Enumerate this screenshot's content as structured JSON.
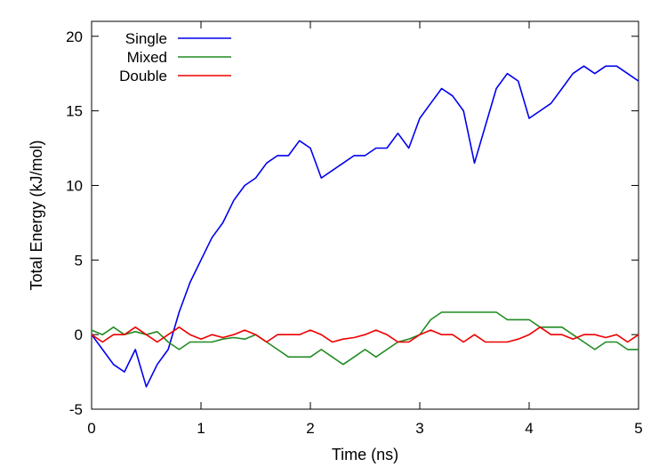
{
  "chart_data": {
    "type": "line",
    "title": "",
    "xlabel": "Time (ns)",
    "ylabel": "Total Energy (kJ/mol)",
    "xlim": [
      0,
      5
    ],
    "ylim": [
      -5,
      21
    ],
    "xticks": [
      0,
      1,
      2,
      3,
      4,
      5
    ],
    "yticks": [
      -5,
      0,
      5,
      10,
      15,
      20
    ],
    "grid": false,
    "legend_position": "top-left",
    "x": [
      0,
      0.1,
      0.2,
      0.3,
      0.4,
      0.5,
      0.6,
      0.7,
      0.8,
      0.9,
      1.0,
      1.1,
      1.2,
      1.3,
      1.4,
      1.5,
      1.6,
      1.7,
      1.8,
      1.9,
      2.0,
      2.1,
      2.2,
      2.3,
      2.4,
      2.5,
      2.6,
      2.7,
      2.8,
      2.9,
      3.0,
      3.1,
      3.2,
      3.3,
      3.4,
      3.5,
      3.6,
      3.7,
      3.8,
      3.9,
      4.0,
      4.1,
      4.2,
      4.3,
      4.4,
      4.5,
      4.6,
      4.7,
      4.8,
      4.9,
      5.0
    ],
    "series": [
      {
        "name": "Single",
        "color": "#0000ee",
        "values": [
          0,
          -1,
          -2,
          -2.5,
          -1,
          -3.5,
          -2,
          -1,
          1.5,
          3.5,
          5,
          6.5,
          7.5,
          9,
          10,
          10.5,
          11.5,
          12,
          12,
          13,
          12.5,
          10.5,
          11,
          11.5,
          12,
          12,
          12.5,
          12.5,
          13.5,
          12.5,
          14.5,
          15.5,
          16.5,
          16,
          15,
          11.5,
          14,
          16.5,
          17.5,
          17,
          14.5,
          15,
          15.5,
          16.5,
          17.5,
          18,
          17.5,
          18,
          18,
          17.5,
          17
        ]
      },
      {
        "name": "Mixed",
        "color": "#228b22",
        "values": [
          0.3,
          0,
          0.5,
          0,
          0.2,
          0,
          0.2,
          -0.5,
          -1,
          -0.5,
          -0.5,
          -0.5,
          -0.3,
          -0.2,
          -0.3,
          0,
          -0.5,
          -1,
          -1.5,
          -1.5,
          -1.5,
          -1,
          -1.5,
          -2,
          -1.5,
          -1,
          -1.5,
          -1,
          -0.5,
          -0.3,
          0,
          1,
          1.5,
          1.5,
          1.5,
          1.5,
          1.5,
          1.5,
          1,
          1,
          1,
          0.5,
          0.5,
          0.5,
          0,
          -0.5,
          -1,
          -0.5,
          -0.5,
          -1,
          -1
        ]
      },
      {
        "name": "Double",
        "color": "#ee0000",
        "values": [
          0,
          -0.5,
          0,
          0,
          0.5,
          0,
          -0.5,
          0,
          0.5,
          0,
          -0.3,
          0,
          -0.2,
          0,
          0.3,
          0,
          -0.5,
          0,
          0,
          0,
          0.3,
          0,
          -0.5,
          -0.3,
          -0.2,
          0,
          0.3,
          0,
          -0.5,
          -0.5,
          0,
          0.3,
          0,
          0,
          -0.5,
          0,
          -0.5,
          -0.5,
          -0.5,
          -0.3,
          0,
          0.5,
          0,
          0,
          -0.3,
          0,
          0,
          -0.2,
          0,
          -0.5,
          0
        ]
      }
    ]
  }
}
